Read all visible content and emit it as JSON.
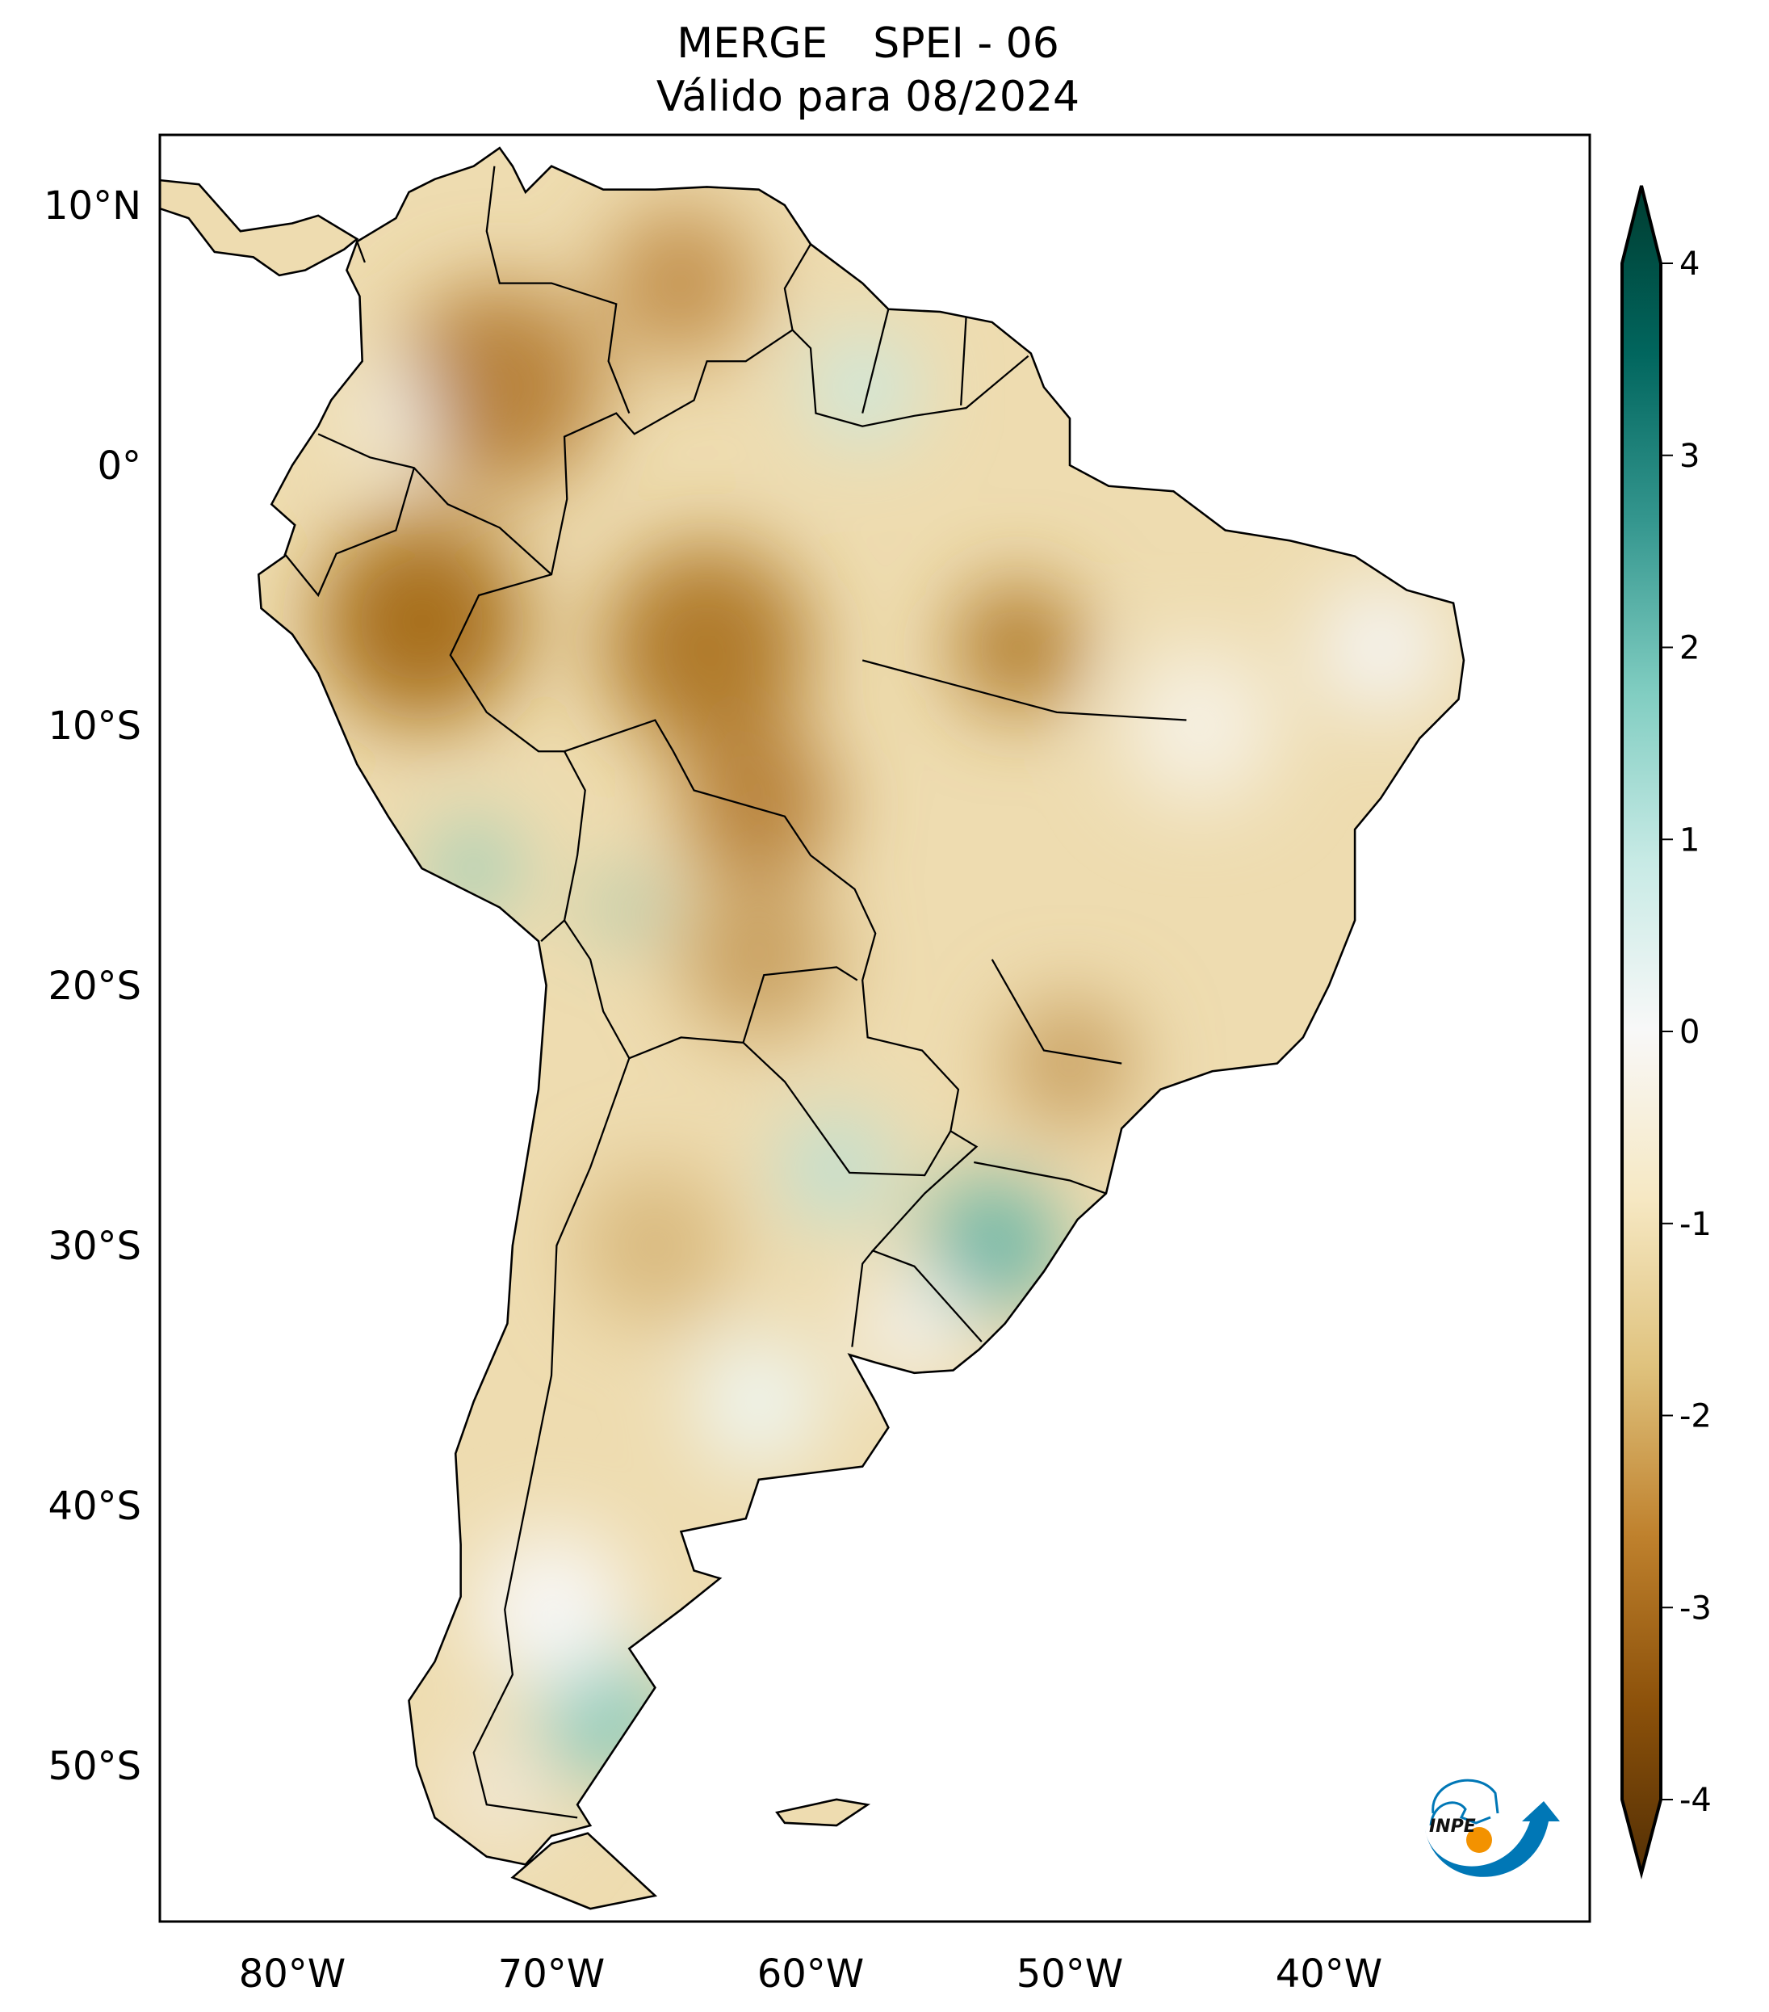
{
  "title": {
    "dataset": "MERGE",
    "index": "SPEI - 06",
    "valid": "Válido para 08/2024"
  },
  "axes": {
    "lat_ticks": [
      {
        "v": 10,
        "label": "10°N"
      },
      {
        "v": 0,
        "label": "0°"
      },
      {
        "v": -10,
        "label": "10°S"
      },
      {
        "v": -20,
        "label": "20°S"
      },
      {
        "v": -30,
        "label": "30°S"
      },
      {
        "v": -40,
        "label": "40°S"
      },
      {
        "v": -50,
        "label": "50°S"
      }
    ],
    "lon_ticks": [
      {
        "v": -80,
        "label": "80°W"
      },
      {
        "v": -70,
        "label": "70°W"
      },
      {
        "v": -60,
        "label": "60°W"
      },
      {
        "v": -50,
        "label": "50°W"
      },
      {
        "v": -40,
        "label": "40°W"
      }
    ],
    "lon_range": [
      -85.1,
      -29.9
    ],
    "lat_range": [
      -56,
      12.7
    ]
  },
  "colorbar": {
    "ticks": [
      {
        "v": 4,
        "label": "4"
      },
      {
        "v": 3,
        "label": "3"
      },
      {
        "v": 2,
        "label": "2"
      },
      {
        "v": 1,
        "label": "1"
      },
      {
        "v": 0,
        "label": "0"
      },
      {
        "v": -1,
        "label": "-1"
      },
      {
        "v": -2,
        "label": "-2"
      },
      {
        "v": -3,
        "label": "-3"
      },
      {
        "v": -4,
        "label": "-4"
      }
    ],
    "range": [
      -4,
      4
    ],
    "colors": [
      "#543005",
      "#8c510a",
      "#bf812d",
      "#dfc27d",
      "#f6e8c3",
      "#f5f5f5",
      "#c7eae5",
      "#80cdc1",
      "#35978f",
      "#01665e",
      "#003c30"
    ]
  },
  "logo": {
    "text": "INPE",
    "blue": "#0077b6",
    "orange": "#f39200"
  }
}
